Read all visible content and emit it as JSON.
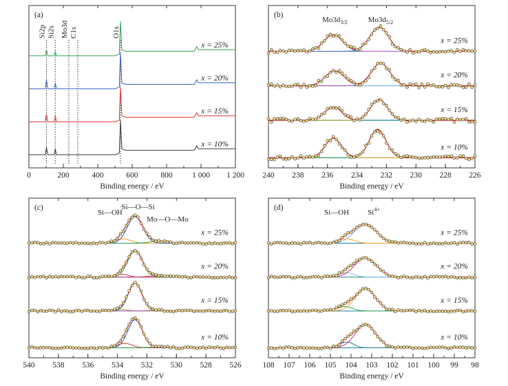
{
  "figure": {
    "colors": {
      "black": "#3a3a3a",
      "red": "#e03030",
      "blue": "#3060c0",
      "green": "#30a050",
      "orange": "#f0a020",
      "purple": "#b050c0",
      "darkgreen": "#2e8b57",
      "magenta": "#d03080",
      "teal": "#208090",
      "olive": "#99aa22",
      "lightblue": "#88bbee",
      "marker": "#f5d98a",
      "envelope": "#cc3333"
    }
  },
  "chart_data": [
    {
      "panel": "(a)",
      "type": "line",
      "xlabel": "Binding energy / eV",
      "xlim": [
        0,
        1200
      ],
      "xticks": [
        0,
        200,
        400,
        600,
        800,
        1000,
        1200
      ],
      "xtick_labels": [
        "0",
        "200",
        "400",
        "600",
        "800",
        "1 000",
        "1 200"
      ],
      "reversed": false,
      "peak_markers": [
        {
          "label": "Si2p",
          "x": 102
        },
        {
          "label": "Si2s",
          "x": 153
        },
        {
          "label": "Mo3d",
          "x": 232
        },
        {
          "label": "C1s",
          "x": 284
        },
        {
          "label": "O1s",
          "x": 532
        }
      ],
      "series": [
        {
          "name": "x = 25%",
          "color": "green",
          "x": [
            0,
            95,
            102,
            110,
            148,
            153,
            160,
            280,
            500,
            525,
            532,
            540,
            560,
            600,
            700,
            800,
            900,
            960,
            975,
            985,
            1000,
            1050,
            1100,
            1150,
            1200
          ],
          "y": [
            72,
            72,
            76,
            72,
            72,
            75,
            72,
            72,
            72,
            73,
            95,
            76,
            75,
            75,
            75,
            75,
            75,
            75,
            78,
            76,
            76,
            76,
            76,
            76,
            76
          ]
        },
        {
          "name": "x = 20%",
          "color": "blue",
          "x": [
            0,
            95,
            102,
            110,
            148,
            153,
            160,
            280,
            500,
            525,
            532,
            540,
            560,
            600,
            700,
            800,
            900,
            960,
            975,
            985,
            1000,
            1050,
            1100,
            1150,
            1200
          ],
          "y": [
            50,
            50,
            56,
            50,
            50,
            54,
            50,
            50,
            50,
            51,
            74,
            54,
            53,
            53,
            53,
            53,
            53,
            53,
            56,
            54,
            54,
            54,
            54,
            54,
            54
          ]
        },
        {
          "name": "x = 15%",
          "color": "red",
          "x": [
            0,
            95,
            102,
            110,
            148,
            153,
            160,
            280,
            500,
            525,
            532,
            540,
            560,
            600,
            700,
            800,
            900,
            960,
            975,
            985,
            1000,
            1050,
            1100,
            1150,
            1200
          ],
          "y": [
            28,
            28,
            33,
            28,
            28,
            32,
            28,
            28,
            28,
            29,
            51,
            32,
            31,
            31,
            31,
            31,
            31,
            31,
            34,
            32,
            32,
            32,
            32,
            32,
            32
          ]
        },
        {
          "name": "x = 10%",
          "color": "black",
          "x": [
            0,
            95,
            102,
            110,
            148,
            153,
            160,
            280,
            500,
            525,
            532,
            540,
            560,
            600,
            700,
            800,
            900,
            960,
            975,
            985,
            1000,
            1050,
            1100,
            1150,
            1200
          ],
          "y": [
            6,
            6,
            11,
            6,
            6,
            10,
            6,
            6,
            6,
            7,
            29,
            10,
            9,
            9,
            9,
            9,
            9,
            9,
            12,
            10,
            10,
            10,
            10,
            10,
            10
          ]
        }
      ]
    },
    {
      "panel": "(b)",
      "type": "scatter",
      "xlabel": "Binding energy / eV",
      "xlim": [
        240,
        226
      ],
      "xticks": [
        240,
        238,
        236,
        234,
        232,
        230,
        228,
        226
      ],
      "xtick_labels": [
        "240",
        "238",
        "236",
        "234",
        "232",
        "230",
        "228",
        "226"
      ],
      "reversed": true,
      "annotations": [
        {
          "text": "Mo3d",
          "sub": "3/2",
          "x": 235.5
        },
        {
          "text": "Mo3d",
          "sub": "5/2",
          "x": 232.4
        }
      ],
      "series": [
        {
          "name": "x = 25%",
          "baseline": 75,
          "peaks": [
            {
              "center": 235.6,
              "height": 11,
              "width": 0.9,
              "color": "purple"
            },
            {
              "center": 232.5,
              "height": 16,
              "width": 0.9,
              "color": "blue"
            }
          ],
          "fit_colors": [
            "purple",
            "blue"
          ]
        },
        {
          "name": "x = 20%",
          "baseline": 52,
          "peaks": [
            {
              "center": 235.5,
              "height": 10,
              "width": 0.9,
              "color": "lightblue"
            },
            {
              "center": 232.4,
              "height": 15,
              "width": 0.9,
              "color": "purple"
            }
          ],
          "fit_colors": [
            "lightblue",
            "purple"
          ]
        },
        {
          "name": "x = 15%",
          "baseline": 29,
          "peaks": [
            {
              "center": 235.6,
              "height": 9,
              "width": 0.8,
              "color": "teal"
            },
            {
              "center": 232.5,
              "height": 14,
              "width": 0.8,
              "color": "olive"
            }
          ],
          "fit_colors": [
            "teal",
            "olive"
          ]
        },
        {
          "name": "x = 10%",
          "baseline": 4,
          "peaks": [
            {
              "center": 235.6,
              "height": 13,
              "width": 0.8,
              "color": "orange"
            },
            {
              "center": 232.6,
              "height": 19,
              "width": 0.8,
              "color": "green"
            }
          ],
          "fit_colors": [
            "orange",
            "green"
          ]
        }
      ]
    },
    {
      "panel": "(c)",
      "type": "scatter",
      "xlabel": "Binding energy / eV",
      "xlim": [
        540,
        526
      ],
      "xticks": [
        540,
        538,
        536,
        534,
        532,
        530,
        528,
        526
      ],
      "xtick_labels": [
        "540",
        "538",
        "536",
        "534",
        "532",
        "530",
        "528",
        "526"
      ],
      "reversed": true,
      "annotations": [
        {
          "text": "Si—OH",
          "x": 534.5
        },
        {
          "text": "Si—O—Si",
          "x": 532.6
        },
        {
          "text": "Mo—O—Mo",
          "x": 530.6
        }
      ],
      "series": [
        {
          "name": "x = 25%",
          "baseline": 75,
          "peaks": [
            {
              "center": 533.6,
              "height": 3,
              "width": 0.7,
              "color": "orange"
            },
            {
              "center": 532.8,
              "height": 18,
              "width": 0.75,
              "color": "blue"
            },
            {
              "center": 531.2,
              "height": 1.5,
              "width": 0.8,
              "color": "green"
            }
          ]
        },
        {
          "name": "x = 20%",
          "baseline": 52,
          "peaks": [
            {
              "center": 533.7,
              "height": 2,
              "width": 0.6,
              "color": "red"
            },
            {
              "center": 532.8,
              "height": 18,
              "width": 0.7,
              "color": "green"
            },
            {
              "center": 531.3,
              "height": 1,
              "width": 0.8,
              "color": "magenta"
            }
          ]
        },
        {
          "name": "x = 15%",
          "baseline": 29,
          "peaks": [
            {
              "center": 533.7,
              "height": 1,
              "width": 0.6,
              "color": "olive"
            },
            {
              "center": 532.8,
              "height": 19,
              "width": 0.65,
              "color": "teal"
            },
            {
              "center": 531.3,
              "height": 0.5,
              "width": 0.8,
              "color": "purple"
            }
          ]
        },
        {
          "name": "x = 10%",
          "baseline": 4,
          "peaks": [
            {
              "center": 533.5,
              "height": 3,
              "width": 0.7,
              "color": "red"
            },
            {
              "center": 532.8,
              "height": 19,
              "width": 0.7,
              "color": "blue"
            },
            {
              "center": 531.2,
              "height": 0.5,
              "width": 0.8,
              "color": "green"
            }
          ]
        }
      ]
    },
    {
      "panel": "(d)",
      "type": "scatter",
      "xlabel": "Binding energy / eV",
      "xlim": [
        108,
        98
      ],
      "xticks": [
        108,
        107,
        106,
        105,
        104,
        103,
        102,
        101,
        100,
        99,
        98
      ],
      "xtick_labels": [
        "108",
        "107",
        "106",
        "105",
        "104",
        "103",
        "102",
        "101",
        "100",
        "99",
        "98"
      ],
      "reversed": true,
      "annotations": [
        {
          "text": "Si—OH",
          "x": 104.7
        },
        {
          "text": "Si",
          "sup": "4+",
          "x": 102.9
        }
      ],
      "series": [
        {
          "name": "x = 25%",
          "baseline": 75,
          "peaks": [
            {
              "center": 104.2,
              "height": 3,
              "width": 0.5,
              "color": "orange"
            },
            {
              "center": 103.3,
              "height": 13,
              "width": 0.75,
              "color": "lightblue"
            }
          ]
        },
        {
          "name": "x = 20%",
          "baseline": 52,
          "peaks": [
            {
              "center": 104.2,
              "height": 3,
              "width": 0.5,
              "color": "lightblue"
            },
            {
              "center": 103.3,
              "height": 13,
              "width": 0.75,
              "color": "magenta"
            }
          ]
        },
        {
          "name": "x = 15%",
          "baseline": 29,
          "peaks": [
            {
              "center": 104.3,
              "height": 3,
              "width": 0.5,
              "color": "green"
            },
            {
              "center": 103.3,
              "height": 15,
              "width": 0.7,
              "color": "orange"
            }
          ]
        },
        {
          "name": "x = 10%",
          "baseline": 4,
          "peaks": [
            {
              "center": 104.2,
              "height": 4,
              "width": 0.45,
              "color": "teal"
            },
            {
              "center": 103.3,
              "height": 16,
              "width": 0.7,
              "color": "magenta"
            }
          ]
        }
      ]
    }
  ]
}
